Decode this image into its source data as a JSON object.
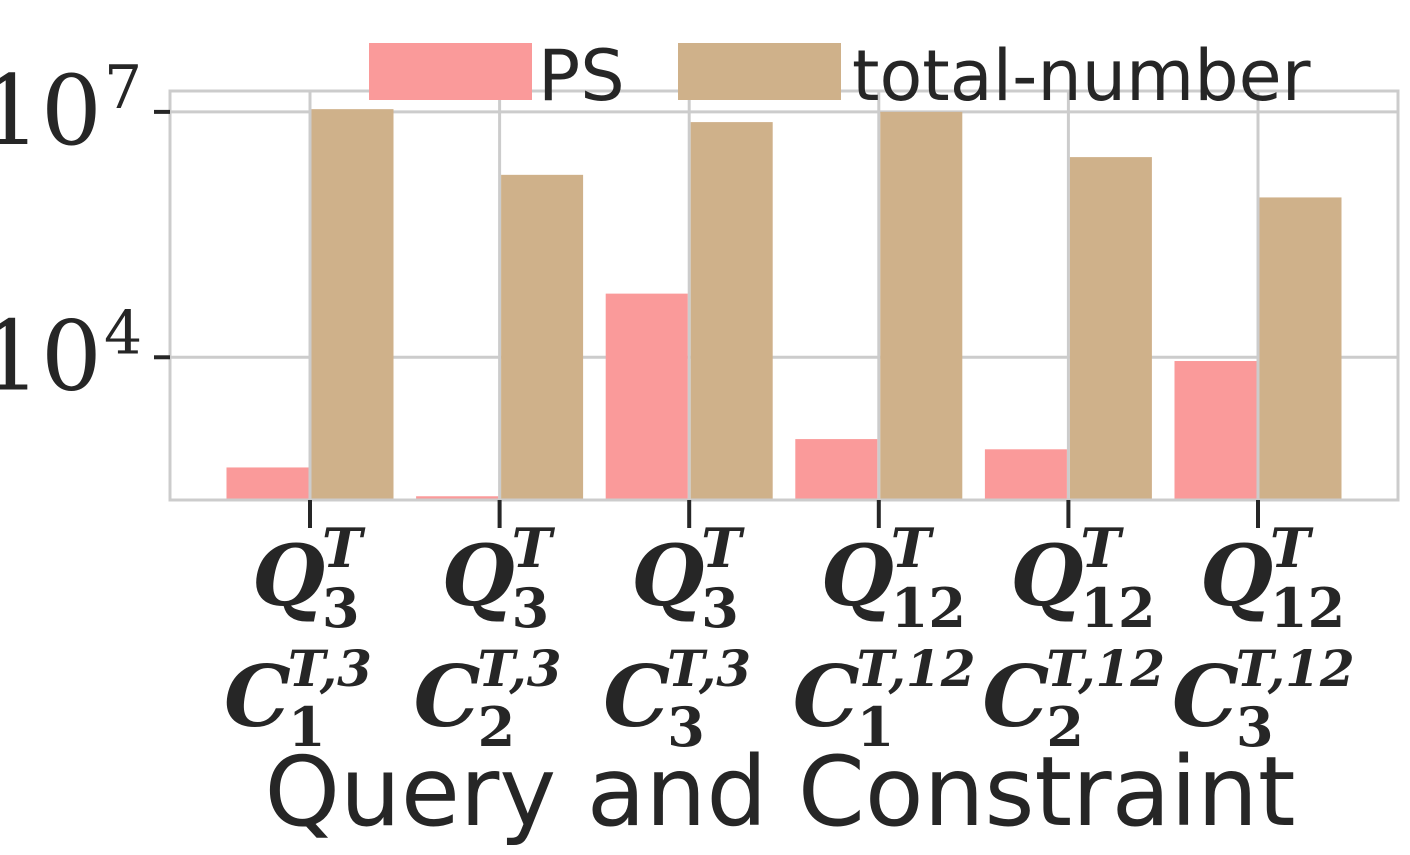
{
  "chart_data": {
    "type": "bar",
    "title": "",
    "xlabel": "Query and Constraint",
    "ylabel": "",
    "yscale": "log",
    "ylim": [
      180,
      18000000
    ],
    "grid": true,
    "legend_position": "top",
    "y_ticks": [
      {
        "value": 10000,
        "base": "10",
        "exp": "4"
      },
      {
        "value": 10000000,
        "base": "10",
        "exp": "7"
      }
    ],
    "categories": [
      {
        "q_base": "Q",
        "q_sup": "T",
        "q_sub": "3",
        "c_base": "C",
        "c_sup": "T,3",
        "c_sub": "1"
      },
      {
        "q_base": "Q",
        "q_sup": "T",
        "q_sub": "3",
        "c_base": "C",
        "c_sup": "T,3",
        "c_sub": "2"
      },
      {
        "q_base": "Q",
        "q_sup": "T",
        "q_sub": "3",
        "c_base": "C",
        "c_sup": "T,3",
        "c_sub": "3"
      },
      {
        "q_base": "Q",
        "q_sup": "T",
        "q_sub": "12",
        "c_base": "C",
        "c_sup": "T,12",
        "c_sub": "1"
      },
      {
        "q_base": "Q",
        "q_sup": "T",
        "q_sub": "12",
        "c_base": "C",
        "c_sup": "T,12",
        "c_sub": "2"
      },
      {
        "q_base": "Q",
        "q_sup": "T",
        "q_sub": "12",
        "c_base": "C",
        "c_sup": "T,12",
        "c_sub": "3"
      }
    ],
    "series": [
      {
        "name": "PS",
        "color": "#fa9a9a",
        "values": [
          450,
          200,
          60000,
          1000,
          750,
          9000
        ]
      },
      {
        "name": "total-number",
        "color": "#cfb18a",
        "values": [
          10800000,
          1700000,
          7500000,
          10000000,
          2800000,
          900000
        ]
      }
    ],
    "colors": {
      "axis": "#cccccc",
      "grid": "#cccccc",
      "text": "#262626",
      "tick": "#262626"
    }
  }
}
